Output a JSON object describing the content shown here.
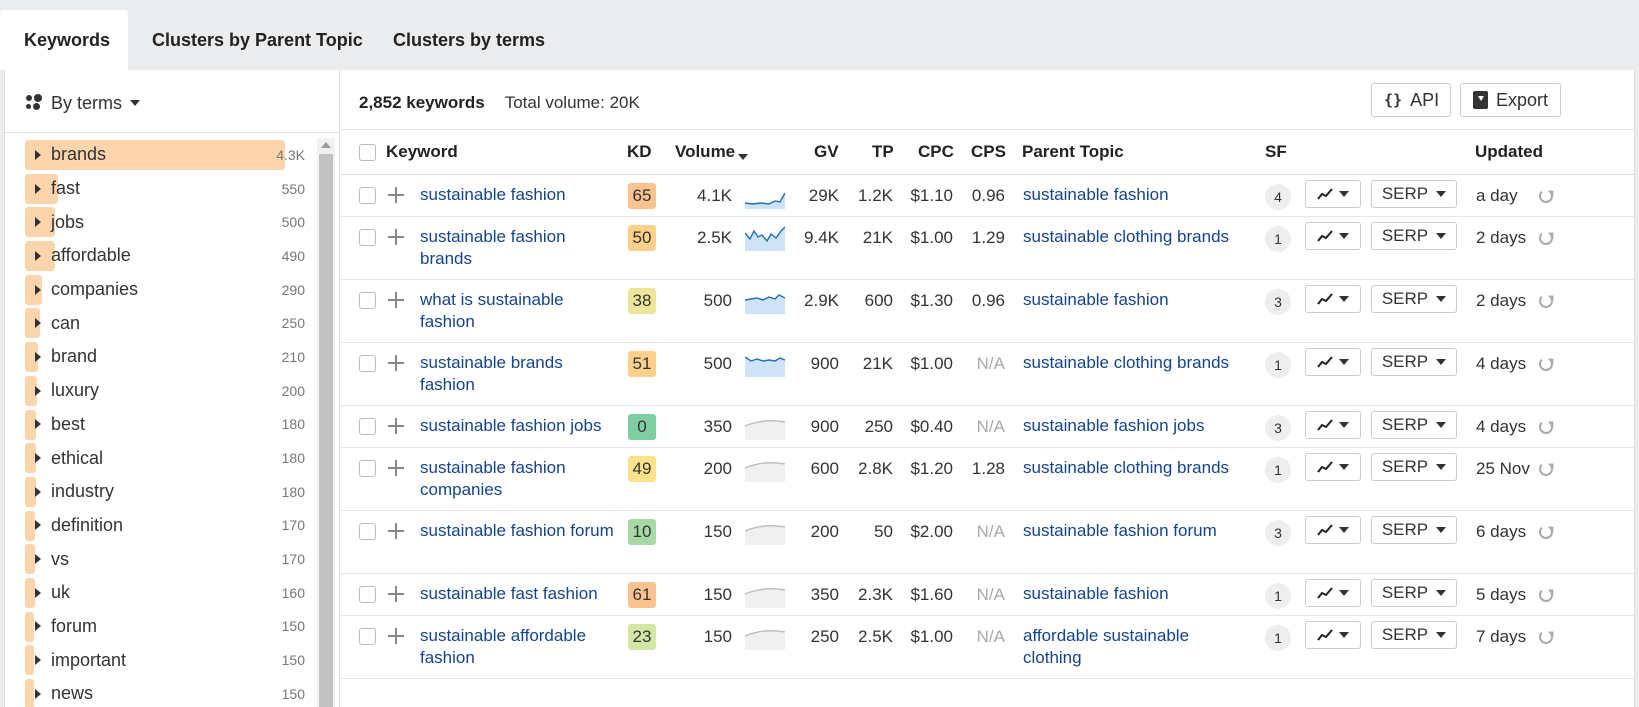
{
  "tabs": [
    {
      "label": "Keywords",
      "active": true
    },
    {
      "label": "Clusters by Parent Topic",
      "active": false
    },
    {
      "label": "Clusters by terms",
      "active": false
    }
  ],
  "sidebar": {
    "group_label": "By terms",
    "terms": [
      {
        "label": "brands",
        "count": "4.3K",
        "share": 1.0
      },
      {
        "label": "fast",
        "count": "550",
        "share": 0.128
      },
      {
        "label": "jobs",
        "count": "500",
        "share": 0.116
      },
      {
        "label": "affordable",
        "count": "490",
        "share": 0.114
      },
      {
        "label": "companies",
        "count": "290",
        "share": 0.067
      },
      {
        "label": "can",
        "count": "250",
        "share": 0.058
      },
      {
        "label": "brand",
        "count": "210",
        "share": 0.049
      },
      {
        "label": "luxury",
        "count": "200",
        "share": 0.047
      },
      {
        "label": "best",
        "count": "180",
        "share": 0.042
      },
      {
        "label": "ethical",
        "count": "180",
        "share": 0.042
      },
      {
        "label": "industry",
        "count": "180",
        "share": 0.042
      },
      {
        "label": "definition",
        "count": "170",
        "share": 0.04
      },
      {
        "label": "vs",
        "count": "170",
        "share": 0.04
      },
      {
        "label": "uk",
        "count": "160",
        "share": 0.037
      },
      {
        "label": "forum",
        "count": "150",
        "share": 0.035
      },
      {
        "label": "important",
        "count": "150",
        "share": 0.035
      },
      {
        "label": "news",
        "count": "150",
        "share": 0.035
      }
    ]
  },
  "summary": {
    "keywords": "2,852 keywords",
    "total_volume": "Total volume: 20K"
  },
  "buttons": {
    "api": "API",
    "export": "Export"
  },
  "columns": {
    "keyword": "Keyword",
    "kd": "KD",
    "volume": "Volume",
    "gv": "GV",
    "tp": "TP",
    "cpc": "CPC",
    "cps": "CPS",
    "parent_topic": "Parent Topic",
    "sf": "SF",
    "updated": "Updated"
  },
  "serp_label": "SERP",
  "kd_colors": {
    "orange": "#f9c38f",
    "yellow": "#fce38a",
    "lightgreen": "#d4e6a3",
    "green": "#7fcea1",
    "midgreen": "#a6d9a6",
    "khaki": "#ece59a",
    "peach": "#fcd08b"
  },
  "rows": [
    {
      "keyword": "sustainable fashion",
      "kd": "65",
      "kd_color": "#f9c38f",
      "volume": "4.1K",
      "trend": "up",
      "gv": "29K",
      "tp": "1.2K",
      "cpc": "$1.10",
      "cps": "0.96",
      "parent": "sustainable fashion",
      "sf": "4",
      "updated": "a day"
    },
    {
      "keyword": "sustainable fashion brands",
      "kd": "50",
      "kd_color": "#fcd08b",
      "volume": "2.5K",
      "trend": "zig",
      "gv": "9.4K",
      "tp": "21K",
      "cpc": "$1.00",
      "cps": "1.29",
      "parent": "sustainable clothing brands",
      "sf": "1",
      "updated": "2 days"
    },
    {
      "keyword": "what is sustainable fashion",
      "kd": "38",
      "kd_color": "#ece59a",
      "volume": "500",
      "trend": "wave",
      "gv": "2.9K",
      "tp": "600",
      "cpc": "$1.30",
      "cps": "0.96",
      "parent": "sustainable fashion",
      "sf": "3",
      "updated": "2 days"
    },
    {
      "keyword": "sustainable brands fashion",
      "kd": "51",
      "kd_color": "#fcd08b",
      "volume": "500",
      "trend": "wave2",
      "gv": "900",
      "tp": "21K",
      "cpc": "$1.00",
      "cps": "N/A",
      "parent": "sustainable clothing brands",
      "sf": "1",
      "updated": "4 days"
    },
    {
      "keyword": "sustainable fashion jobs",
      "kd": "0",
      "kd_color": "#7fcea1",
      "volume": "350",
      "trend": "flat",
      "gv": "900",
      "tp": "250",
      "cpc": "$0.40",
      "cps": "N/A",
      "parent": "sustainable fashion jobs",
      "sf": "3",
      "updated": "4 days"
    },
    {
      "keyword": "sustainable fashion companies",
      "kd": "49",
      "kd_color": "#fce38a",
      "volume": "200",
      "trend": "flat",
      "gv": "600",
      "tp": "2.8K",
      "cpc": "$1.20",
      "cps": "1.28",
      "parent": "sustainable clothing brands",
      "sf": "1",
      "updated": "25 Nov"
    },
    {
      "keyword": "sustainable fashion forum",
      "kd": "10",
      "kd_color": "#a6d9a6",
      "volume": "150",
      "trend": "flat",
      "gv": "200",
      "tp": "50",
      "cpc": "$2.00",
      "cps": "N/A",
      "parent": "sustainable fashion forum",
      "sf": "3",
      "updated": "6 days"
    },
    {
      "keyword": "sustainable fast fashion",
      "kd": "61",
      "kd_color": "#f9c38f",
      "volume": "150",
      "trend": "flat",
      "gv": "350",
      "tp": "2.3K",
      "cpc": "$1.60",
      "cps": "N/A",
      "parent": "sustainable fashion",
      "sf": "1",
      "updated": "5 days"
    },
    {
      "keyword": "sustainable affordable fashion",
      "kd": "23",
      "kd_color": "#d4e6a3",
      "volume": "150",
      "trend": "flat",
      "gv": "250",
      "tp": "2.5K",
      "cpc": "$1.00",
      "cps": "N/A",
      "parent": "affordable sustainable clothing",
      "sf": "1",
      "updated": "7 days"
    }
  ]
}
